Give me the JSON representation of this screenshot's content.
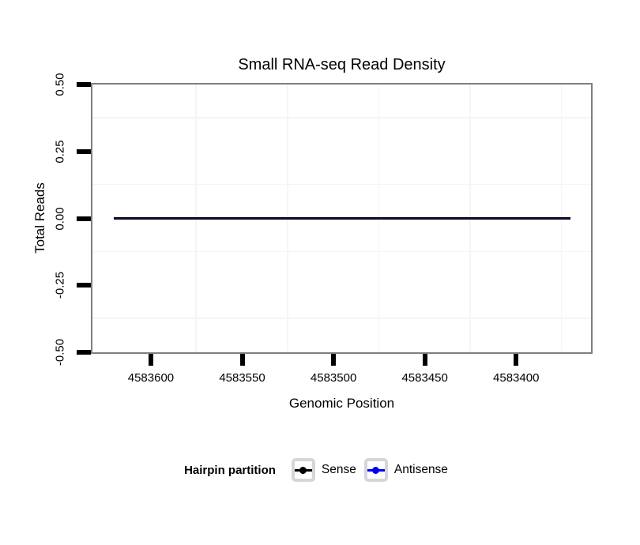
{
  "chart_data": {
    "type": "line",
    "title": "Small RNA-seq Read Density",
    "xlabel": "Genomic Position",
    "ylabel": "Total Reads",
    "x_ticks": [
      4583600,
      4583550,
      4583500,
      4583450,
      4583400
    ],
    "x_tick_labels": [
      "4583600",
      "4583550",
      "4583500",
      "4583450",
      "4583400"
    ],
    "x_axis_reversed": true,
    "xlim": [
      4583632,
      4583359
    ],
    "x_minor_gridlines": [
      4583575,
      4583525,
      4583475,
      4583425,
      4583375
    ],
    "y_ticks": [
      0.5,
      0.25,
      0,
      -0.25,
      -0.5
    ],
    "y_tick_labels": [
      "0.50",
      "0.25",
      "0.00",
      "-0.25",
      "-0.50"
    ],
    "ylim": [
      -0.5,
      0.5
    ],
    "y_minor_gridlines": [
      0.375,
      0.125,
      -0.125,
      -0.375
    ],
    "grid": "minor-only",
    "legend_position": "bottom",
    "legend_title": "Hairpin partition",
    "series": [
      {
        "name": "Sense",
        "color": "#000000",
        "x": [
          4583620,
          4583370
        ],
        "y": [
          0,
          0
        ]
      },
      {
        "name": "Antisense",
        "color": "#0000ee",
        "x": [
          4583620,
          4583370
        ],
        "y": [
          0,
          0
        ]
      }
    ]
  },
  "colors": {
    "panel_border": "#7f7f7f",
    "tick": "#000000",
    "minor_grid": "#f5f5f5",
    "legend_key_border": "#d6d6d6",
    "line_core": "#1c1c96",
    "sense": "#000000",
    "antisense": "#0000ee"
  }
}
